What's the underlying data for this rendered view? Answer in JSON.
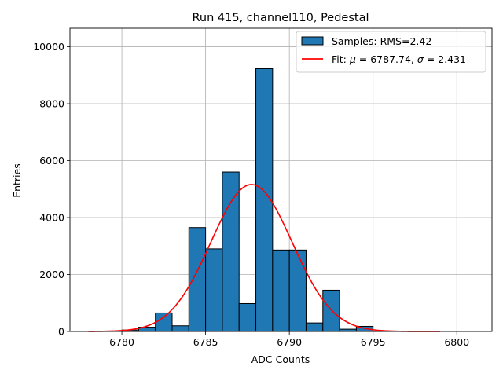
{
  "chart_data": {
    "type": "bar",
    "title": "Run 415, channel110, Pedestal",
    "xlabel": "ADC Counts",
    "ylabel": "Entries",
    "xlim": [
      6776.9,
      6802.1
    ],
    "ylim": [
      0,
      10650
    ],
    "xticks": [
      6780,
      6785,
      6790,
      6795,
      6800
    ],
    "yticks": [
      0,
      2000,
      4000,
      6000,
      8000,
      10000
    ],
    "grid": true,
    "legend_location": "upper right",
    "histogram": {
      "name": "Samples: RMS=2.42",
      "color": "#1f77b4",
      "bins": [
        {
          "left": 6780,
          "right": 6781,
          "count": 50
        },
        {
          "left": 6781,
          "right": 6782,
          "count": 150
        },
        {
          "left": 6782,
          "right": 6783,
          "count": 650
        },
        {
          "left": 6783,
          "right": 6784,
          "count": 200
        },
        {
          "left": 6784,
          "right": 6785,
          "count": 3650
        },
        {
          "left": 6785,
          "right": 6786,
          "count": 2900
        },
        {
          "left": 6786,
          "right": 6787,
          "count": 5600
        },
        {
          "left": 6787,
          "right": 6788,
          "count": 980
        },
        {
          "left": 6788,
          "right": 6789,
          "count": 9230
        },
        {
          "left": 6789,
          "right": 6790,
          "count": 2860
        },
        {
          "left": 6790,
          "right": 6791,
          "count": 2860
        },
        {
          "left": 6791,
          "right": 6792,
          "count": 300
        },
        {
          "left": 6792,
          "right": 6793,
          "count": 1450
        },
        {
          "left": 6793,
          "right": 6794,
          "count": 80
        },
        {
          "left": 6794,
          "right": 6795,
          "count": 180
        },
        {
          "left": 6795,
          "right": 6796,
          "count": 10
        }
      ]
    },
    "fit": {
      "name_prefix": "Fit: ",
      "mu_symbol": "μ",
      "mu_text": " = 6787.74, ",
      "sigma_symbol": "σ",
      "sigma_text": " = 2.431",
      "mu": 6787.74,
      "sigma": 2.431,
      "amplitude": 5160,
      "x_range": [
        6778,
        6799
      ],
      "color": "#ff0000"
    }
  }
}
